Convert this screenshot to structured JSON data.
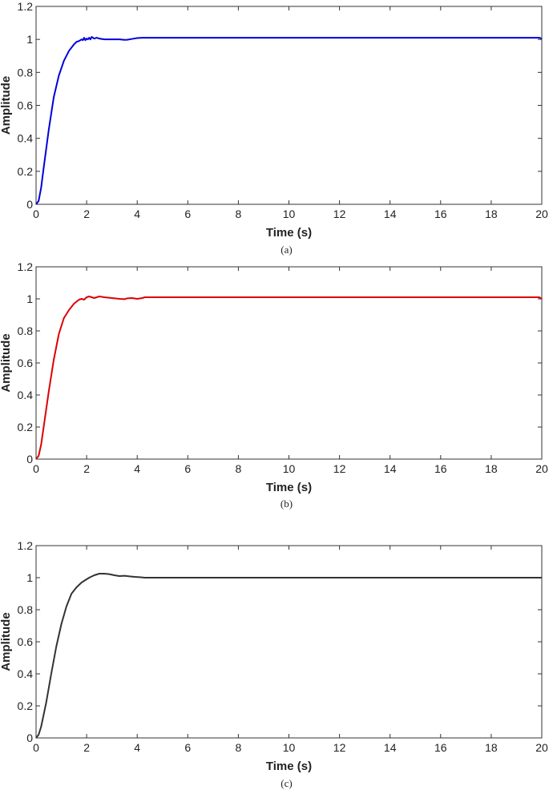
{
  "chart_data": [
    {
      "type": "line",
      "caption": "(a)",
      "xlabel": "Time (s)",
      "ylabel": "Amplitude",
      "xlim": [
        0,
        20
      ],
      "ylim": [
        0,
        1.2
      ],
      "xticks": [
        "0",
        "2",
        "4",
        "6",
        "8",
        "10",
        "12",
        "14",
        "16",
        "18",
        "20"
      ],
      "yticks": [
        "0",
        "0.2",
        "0.4",
        "0.6",
        "0.8",
        "1",
        "1.2"
      ],
      "grid": false,
      "color": "#0000dd",
      "series": [
        {
          "x": [
            0,
            0.1,
            0.2,
            0.3,
            0.5,
            0.7,
            0.9,
            1.1,
            1.3,
            1.5,
            1.6,
            1.7,
            1.8,
            1.85,
            1.9,
            1.95,
            2.0,
            2.05,
            2.1,
            2.15,
            2.2,
            2.3,
            2.4,
            2.5,
            2.7,
            3.0,
            3.3,
            3.5,
            3.6,
            3.8,
            4.0,
            4.2,
            5,
            10,
            15,
            19.9,
            20
          ],
          "y": [
            0,
            0.02,
            0.1,
            0.22,
            0.45,
            0.65,
            0.78,
            0.87,
            0.93,
            0.97,
            0.985,
            0.99,
            1.0,
            0.995,
            1.01,
            0.995,
            1.005,
            1.0,
            1.01,
            1.0,
            1.015,
            1.005,
            1.01,
            1.005,
            1.0,
            1.0,
            1.0,
            0.997,
            0.998,
            1.003,
            1.008,
            1.01,
            1.01,
            1.01,
            1.01,
            1.01,
            1.005
          ]
        }
      ]
    },
    {
      "type": "line",
      "caption": "(b)",
      "xlabel": "Time (s)",
      "ylabel": "Amplitude",
      "xlim": [
        0,
        20
      ],
      "ylim": [
        0,
        1.2
      ],
      "xticks": [
        "0",
        "2",
        "4",
        "6",
        "8",
        "10",
        "12",
        "14",
        "16",
        "18",
        "20"
      ],
      "yticks": [
        "0",
        "0.2",
        "0.4",
        "0.6",
        "0.8",
        "1",
        "1.2"
      ],
      "grid": false,
      "color": "#dd0000",
      "series": [
        {
          "x": [
            0,
            0.1,
            0.2,
            0.3,
            0.5,
            0.7,
            0.9,
            1.1,
            1.3,
            1.5,
            1.7,
            1.8,
            1.9,
            2.0,
            2.1,
            2.2,
            2.3,
            2.5,
            2.7,
            3.0,
            3.3,
            3.5,
            3.6,
            3.8,
            4.0,
            4.2,
            4.3,
            5,
            10,
            15,
            19.9,
            20
          ],
          "y": [
            0,
            0.02,
            0.09,
            0.2,
            0.42,
            0.62,
            0.78,
            0.88,
            0.93,
            0.97,
            0.995,
            1.0,
            0.995,
            1.01,
            1.015,
            1.01,
            1.005,
            1.015,
            1.01,
            1.005,
            1.0,
            0.998,
            1.003,
            1.005,
            1.0,
            1.005,
            1.01,
            1.01,
            1.01,
            1.01,
            1.01,
            1.0
          ]
        }
      ]
    },
    {
      "type": "line",
      "caption": "(c)",
      "xlabel": "Time (s)",
      "ylabel": "Amplitude",
      "xlim": [
        0,
        20
      ],
      "ylim": [
        0,
        1.2
      ],
      "xticks": [
        "0",
        "2",
        "4",
        "6",
        "8",
        "10",
        "12",
        "14",
        "16",
        "18",
        "20"
      ],
      "yticks": [
        "0",
        "0.2",
        "0.4",
        "0.6",
        "0.8",
        "1",
        "1.2"
      ],
      "grid": false,
      "color": "#333333",
      "series": [
        {
          "x": [
            0,
            0.1,
            0.2,
            0.4,
            0.6,
            0.8,
            1.0,
            1.2,
            1.4,
            1.6,
            1.8,
            1.9,
            2.0,
            2.1,
            2.3,
            2.5,
            2.7,
            2.9,
            3.1,
            3.3,
            3.5,
            3.7,
            3.9,
            4.1,
            4.3,
            5,
            10,
            15,
            20
          ],
          "y": [
            0,
            0.02,
            0.07,
            0.22,
            0.4,
            0.57,
            0.71,
            0.82,
            0.9,
            0.94,
            0.97,
            0.98,
            0.99,
            1.0,
            1.015,
            1.025,
            1.025,
            1.022,
            1.015,
            1.01,
            1.012,
            1.008,
            1.005,
            1.003,
            1.0,
            1.0,
            1.0,
            1.0,
            1.0
          ]
        }
      ]
    }
  ]
}
